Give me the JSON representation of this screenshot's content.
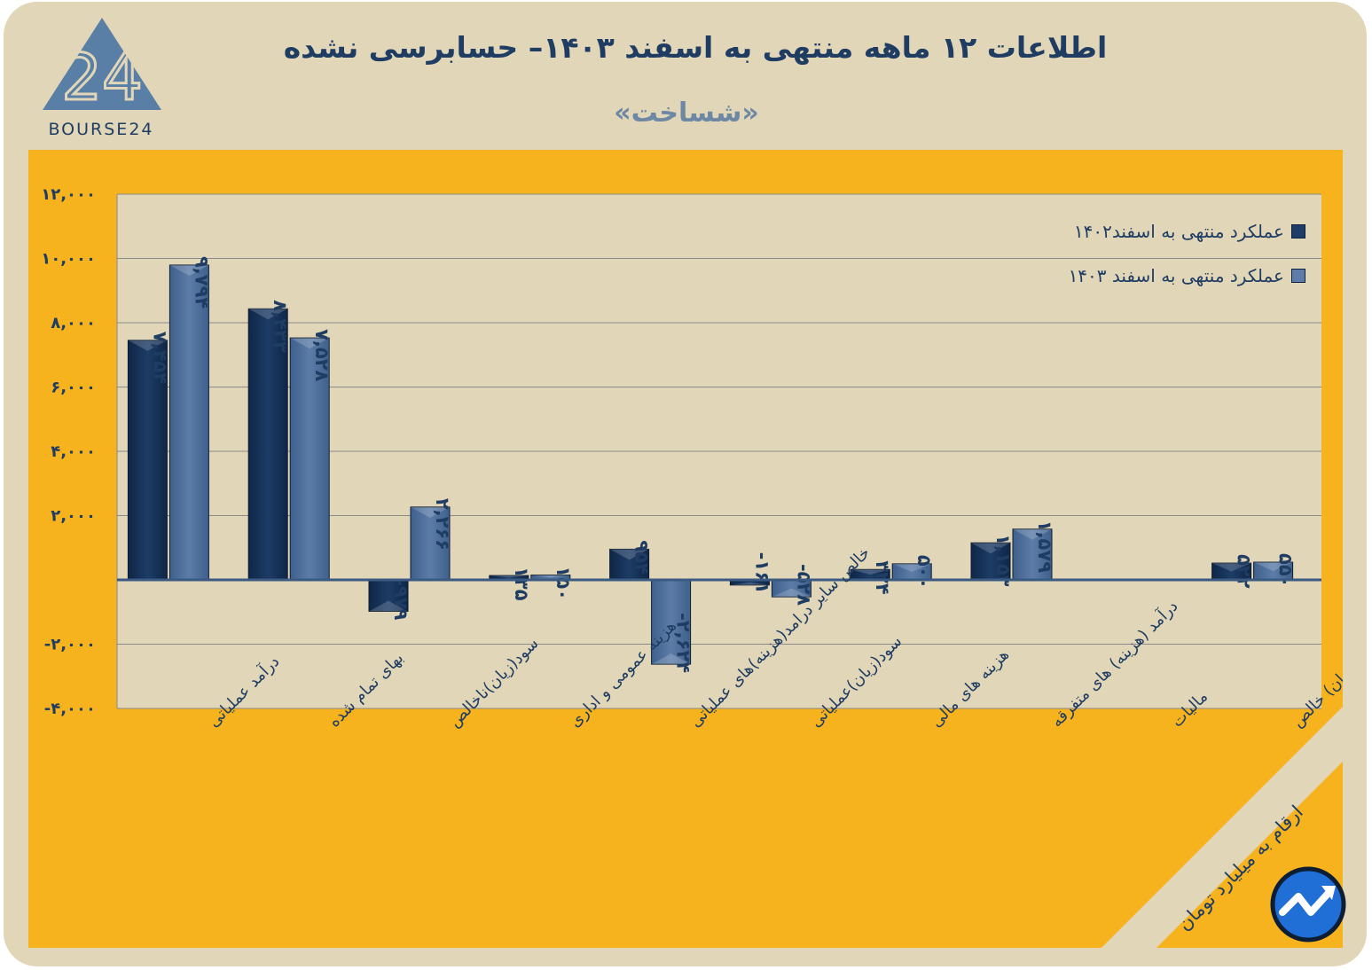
{
  "header": {
    "title": "اطلاعات ۱۲ ماهه منتهی به اسفند  ۱۴۰۳– حسابرسی نشده",
    "subtitle": "«شساخت»",
    "logo_text": "BOURSE24"
  },
  "legend": {
    "items": [
      {
        "label": "عملکرد منتهی به اسفند۱۴۰۲",
        "color": "#1d3c66"
      },
      {
        "label": "عملکرد منتهی به اسفند ۱۴۰۳",
        "color": "#5d7da8"
      }
    ]
  },
  "footer": {
    "unit_label": "ارقام به میلیارد تومان"
  },
  "colors": {
    "background": "#e2d6b8",
    "chart_bg": "#f6b31d",
    "plot_bg": "#e2d6b8",
    "series_1402": "#1d3c66",
    "series_1403": "#5d7da8",
    "text": "#1f3d63"
  },
  "chart_data": {
    "type": "bar",
    "ylim": [
      -4000,
      12000
    ],
    "yticks": [
      -4000,
      -2000,
      0,
      2000,
      4000,
      6000,
      8000,
      10000,
      12000
    ],
    "ytick_labels": [
      "-۴,۰۰۰",
      "-۲,۰۰۰",
      "",
      "۲,۰۰۰",
      "۴,۰۰۰",
      "۶,۰۰۰",
      "۸,۰۰۰",
      "۱۰,۰۰۰",
      "۱۲,۰۰۰"
    ],
    "grid": true,
    "legend_position": "top-right",
    "categories": [
      "درآمد عملیاتی",
      "بهای تمام شده",
      "سود(زیان)ناخالص",
      "هزینه عمومی و اداری",
      "خالص سایر درامد(هزینه)های عملیاتی",
      "سود(زیان)عملیاتی",
      "هزینه های مالی",
      "درآمد (هزینه) های متفرقه",
      "مالیات",
      "سود(زیان) خالص"
    ],
    "series": [
      {
        "name": "عملکرد منتهی به اسفند۱۴۰۲",
        "values": [
          7454,
          8433,
          -979,
          135,
          954,
          -161,
          324,
          1153,
          0,
          522
        ],
        "labels": [
          "۷,۴۵۴",
          "۸,۴۳۳",
          "-۹۷۹",
          "۱۳۵",
          "۹۵۴",
          "-۱۶۱",
          "۳۲۴",
          "۱,۱۵۳",
          "",
          "۵۲۲"
        ]
      },
      {
        "name": "عملکرد منتهی به اسفند ۱۴۰۳",
        "values": [
          9794,
          7528,
          2266,
          150,
          -2624,
          -528,
          500,
          1579,
          0,
          550
        ],
        "labels": [
          "۹,۷۹۴",
          "۷,۵۲۸",
          "۲,۲۶۶",
          "۱۵۰",
          "-۲,۶۲۴",
          "-۵۲۸",
          "۵۰۰",
          "۱,۵۷۹",
          "",
          "۵۵۰"
        ]
      }
    ]
  }
}
